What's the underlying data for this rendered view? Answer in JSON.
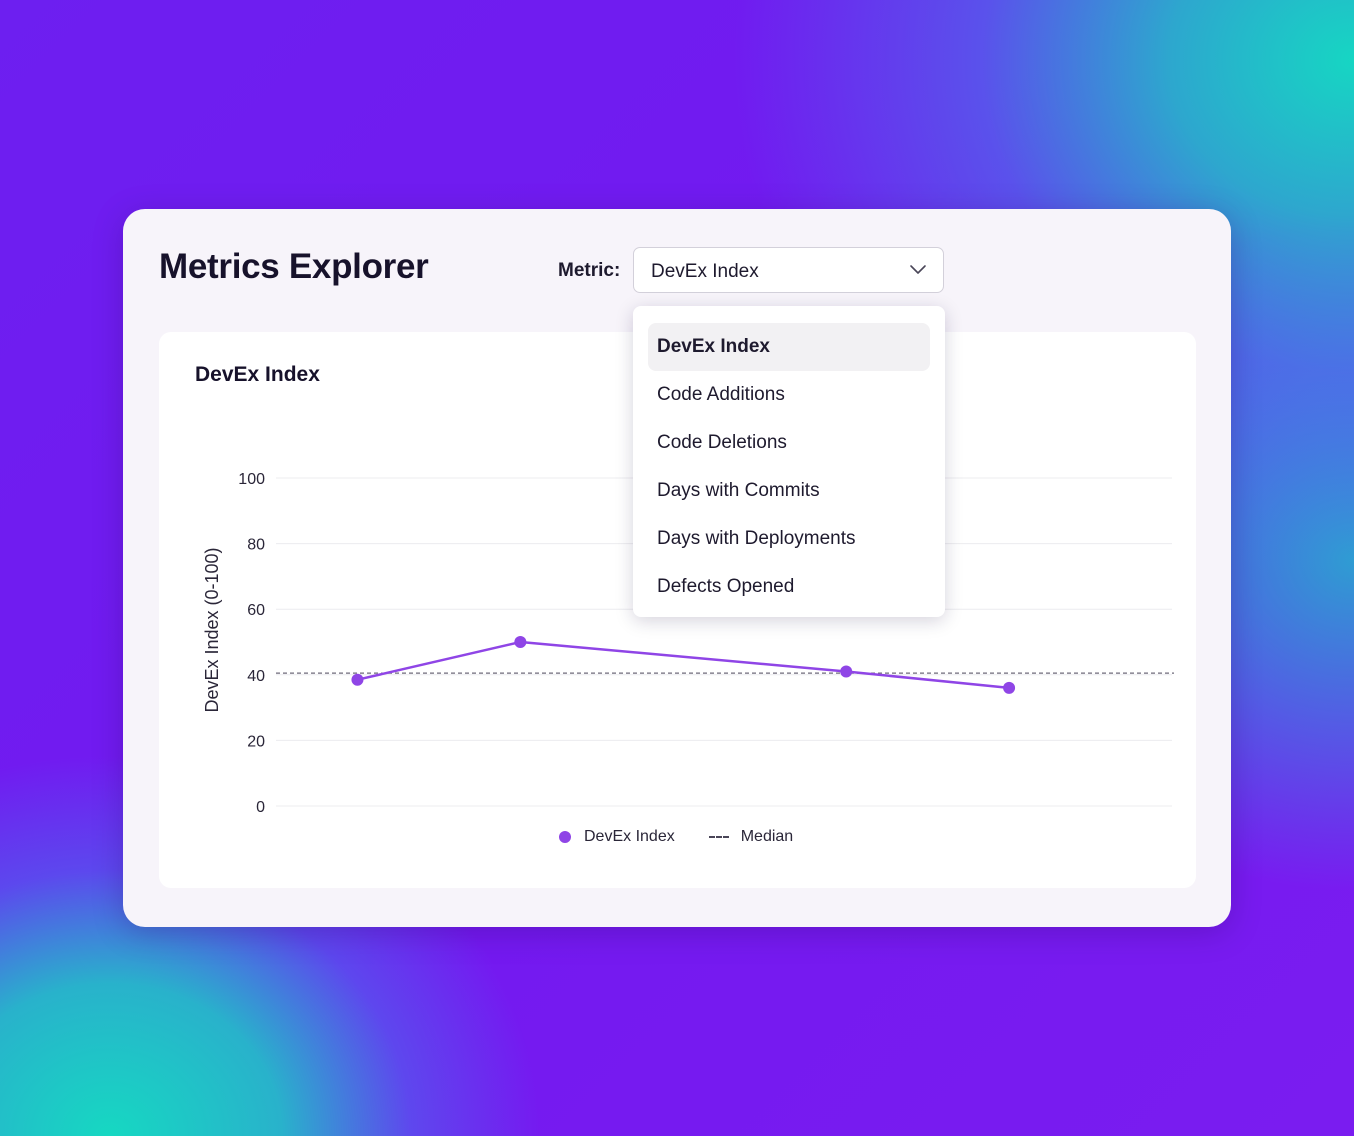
{
  "page": {
    "title": "Metrics Explorer"
  },
  "metric_select": {
    "label": "Metric:",
    "value": "DevEx Index",
    "icon": "chevron-down-icon"
  },
  "dropdown": {
    "items": [
      {
        "label": "DevEx Index",
        "selected": true
      },
      {
        "label": "Code Additions",
        "selected": false
      },
      {
        "label": "Code Deletions",
        "selected": false
      },
      {
        "label": "Days with Commits",
        "selected": false
      },
      {
        "label": "Days with Deployments",
        "selected": false
      },
      {
        "label": "Defects Opened",
        "selected": false
      }
    ]
  },
  "chart_data": {
    "type": "line",
    "title": "DevEx Index",
    "xlabel": "",
    "ylabel": "DevEx Index  (0-100)",
    "ylim": [
      0,
      100
    ],
    "yticks": [
      0,
      20,
      40,
      60,
      80,
      100
    ],
    "grid": true,
    "legend_placement": "bottom-center",
    "series": [
      {
        "name": "DevEx Index",
        "color": "#8f45e6",
        "x": [
          1,
          2,
          4,
          5
        ],
        "values": [
          38.5,
          50,
          41,
          36
        ]
      }
    ],
    "median": {
      "name": "Median",
      "value": 40.5,
      "color": "#6e6a7a"
    },
    "xlim": [
      0.5,
      6.0
    ]
  }
}
